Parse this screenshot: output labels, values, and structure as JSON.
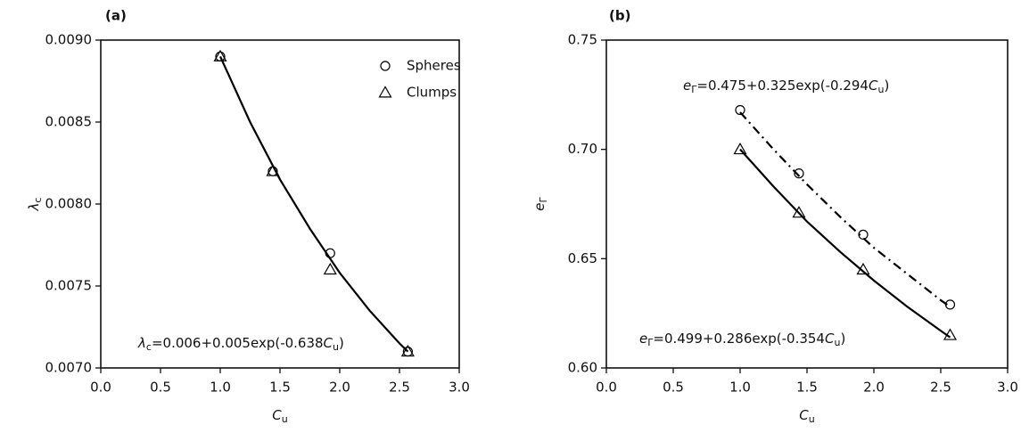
{
  "chart_data": [
    {
      "type": "scatter",
      "panel_label": "(a)",
      "x_label": [
        {
          "text": "C",
          "style": "italic"
        },
        {
          "text": "u",
          "style": "sub"
        }
      ],
      "y_label": [
        {
          "text": "λ",
          "style": "italic"
        },
        {
          "text": "c",
          "style": "sub"
        }
      ],
      "x": [
        1.0,
        1.44,
        1.92,
        2.57
      ],
      "series": [
        {
          "name": "Spheres",
          "marker": "circle",
          "color": "#000000",
          "values": [
            0.0089,
            0.0082,
            0.0077,
            0.0071
          ]
        },
        {
          "name": "Clumps",
          "marker": "triangle",
          "color": "#000000",
          "values": [
            0.0089,
            0.0082,
            0.0076,
            0.0071
          ]
        }
      ],
      "curves": [
        {
          "dash": "solid",
          "color": "#000000",
          "x": [
            1.0,
            1.25,
            1.5,
            1.75,
            2.0,
            2.25,
            2.5,
            2.57
          ],
          "values": [
            0.0089,
            0.0085,
            0.00815,
            0.00785,
            0.00758,
            0.00735,
            0.00715,
            0.0071
          ]
        }
      ],
      "annotations": [
        [
          {
            "text": "λ",
            "style": "italic"
          },
          {
            "text": "c",
            "style": "sub"
          },
          {
            "text": "=0.006+0.005exp(-0.638"
          },
          {
            "text": "C",
            "style": "italic"
          },
          {
            "text": "u",
            "style": "sub"
          },
          {
            "text": ")"
          }
        ]
      ],
      "legend": "upper right",
      "xlim": [
        0,
        3
      ],
      "xticks": [
        {
          "value": 0,
          "label": "0.0"
        },
        0.5,
        {
          "value": 1,
          "label": "1.0"
        },
        1.5,
        {
          "value": 2,
          "label": "2.0"
        },
        2.5,
        {
          "value": 3,
          "label": "3.0"
        }
      ],
      "ylim": [
        0.007,
        0.009
      ],
      "yticks": [
        {
          "value": 0.007,
          "label": "0.0070"
        },
        0.0075,
        {
          "value": 0.008,
          "label": "0.0080"
        },
        0.0085,
        {
          "value": 0.009,
          "label": "0.0090"
        }
      ]
    },
    {
      "type": "scatter",
      "panel_label": "(b)",
      "x_label": [
        {
          "text": "C",
          "style": "italic"
        },
        {
          "text": "u",
          "style": "sub"
        }
      ],
      "y_label": [
        {
          "text": "e",
          "style": "italic"
        },
        {
          "text": "Γ",
          "style": "sub"
        }
      ],
      "x": [
        1.0,
        1.44,
        1.92,
        2.57
      ],
      "series": [
        {
          "marker": "circle",
          "color": "#000000",
          "values": [
            0.718,
            0.689,
            0.661,
            0.629
          ]
        },
        {
          "marker": "triangle",
          "color": "#000000",
          "values": [
            0.7,
            0.671,
            0.645,
            0.615
          ]
        }
      ],
      "curves": [
        {
          "dash": "dashdot",
          "color": "#000000",
          "x": [
            1.0,
            1.25,
            1.5,
            1.75,
            2.0,
            2.25,
            2.5,
            2.57
          ],
          "values": [
            0.717,
            0.7,
            0.684,
            0.669,
            0.655,
            0.643,
            0.631,
            0.628
          ]
        },
        {
          "dash": "solid",
          "color": "#000000",
          "x": [
            1.0,
            1.25,
            1.5,
            1.75,
            2.0,
            2.25,
            2.5,
            2.57
          ],
          "values": [
            0.7,
            0.683,
            0.667,
            0.653,
            0.64,
            0.628,
            0.617,
            0.614
          ]
        }
      ],
      "annotations": [
        [
          {
            "text": "e",
            "style": "italic"
          },
          {
            "text": "Γ",
            "style": "sub"
          },
          {
            "text": "=0.475+0.325exp(-0.294"
          },
          {
            "text": "C",
            "style": "italic"
          },
          {
            "text": "u",
            "style": "sub"
          },
          {
            "text": ")"
          }
        ],
        [
          {
            "text": "e",
            "style": "italic"
          },
          {
            "text": "Γ",
            "style": "sub"
          },
          {
            "text": "=0.499+0.286exp(-0.354"
          },
          {
            "text": "C",
            "style": "italic"
          },
          {
            "text": "u",
            "style": "sub"
          },
          {
            "text": ")"
          }
        ]
      ],
      "xlim": [
        0,
        3
      ],
      "xticks": [
        {
          "value": 0,
          "label": "0.0"
        },
        0.5,
        {
          "value": 1,
          "label": "1.0"
        },
        1.5,
        {
          "value": 2,
          "label": "2.0"
        },
        2.5,
        {
          "value": 3,
          "label": "3.0"
        }
      ],
      "ylim": [
        0.6,
        0.75
      ],
      "yticks": [
        {
          "value": 0.6,
          "label": "0.60"
        },
        0.65,
        {
          "value": 0.7,
          "label": "0.70"
        },
        0.75
      ]
    }
  ]
}
